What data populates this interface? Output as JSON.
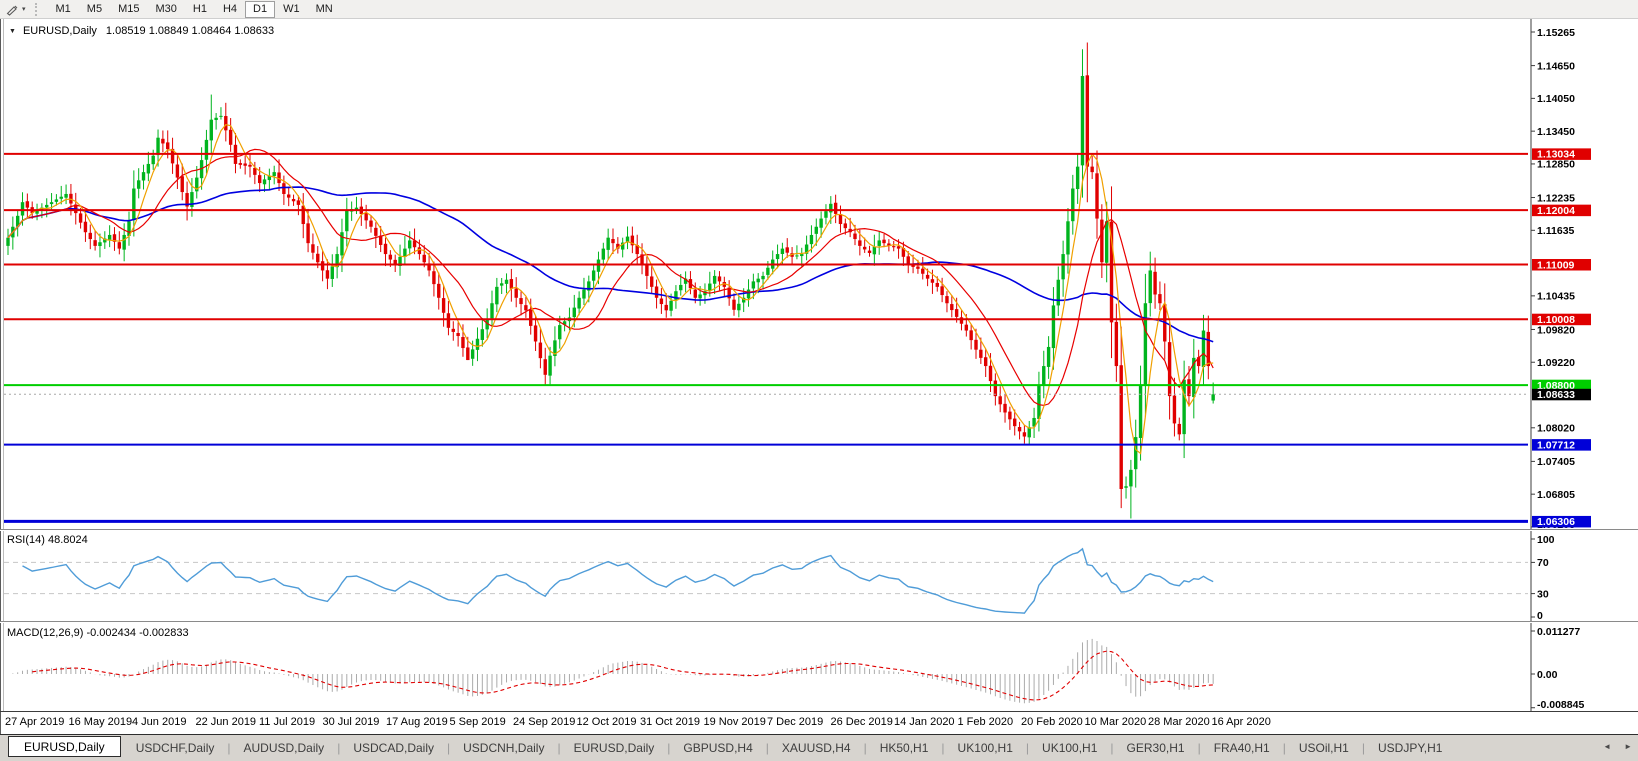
{
  "icons": {
    "title_caret": "▼",
    "tool_caret": "▾",
    "tab_scroll_left": "◄",
    "tab_scroll_right": "►",
    "pencil_tool": "pencil"
  },
  "toolbar": {
    "timeframes": [
      "M1",
      "M5",
      "M15",
      "M30",
      "H1",
      "H4",
      "D1",
      "W1",
      "MN"
    ],
    "active_timeframe": "D1"
  },
  "chart": {
    "title": {
      "symbol": "EURUSD,Daily",
      "ohlc": "1.08519 1.08849 1.08464 1.08633"
    }
  },
  "rsi_panel": {
    "label": "RSI(14) 48.8024",
    "axis_labels": [
      {
        "text": "100",
        "value": 100
      },
      {
        "text": "70",
        "value": 70
      },
      {
        "text": "30",
        "value": 30
      },
      {
        "text": "0",
        "value": 0
      }
    ]
  },
  "macd_panel": {
    "label": "MACD(12,26,9) -0.002434 -0.002833",
    "axis_labels": [
      {
        "text": "0.011277",
        "value": 0.011277
      },
      {
        "text": "0.00",
        "value": 0
      },
      {
        "text": "-0.008845",
        "value": -0.008845
      }
    ]
  },
  "date_axis": [
    "27 Apr 2019",
    "16 May 2019",
    "4 Jun 2019",
    "22 Jun 2019",
    "11 Jul 2019",
    "30 Jul 2019",
    "17 Aug 2019",
    "5 Sep 2019",
    "24 Sep 2019",
    "12 Oct 2019",
    "31 Oct 2019",
    "19 Nov 2019",
    "7 Dec 2019",
    "26 Dec 2019",
    "14 Jan 2020",
    "1 Feb 2020",
    "20 Feb 2020",
    "10 Mar 2020",
    "28 Mar 2020",
    "16 Apr 2020"
  ],
  "tabs": [
    {
      "label": "EURUSD,Daily",
      "active": true
    },
    {
      "label": "USDCHF,Daily",
      "active": false
    },
    {
      "label": "AUDUSD,Daily",
      "active": false
    },
    {
      "label": "USDCAD,Daily",
      "active": false
    },
    {
      "label": "USDCNH,Daily",
      "active": false
    },
    {
      "label": "EURUSD,Daily",
      "active": false
    },
    {
      "label": "GBPUSD,H4",
      "active": false
    },
    {
      "label": "XAUUSD,H4",
      "active": false
    },
    {
      "label": "HK50,H1",
      "active": false
    },
    {
      "label": "UK100,H1",
      "active": false
    },
    {
      "label": "UK100,H1",
      "active": false
    },
    {
      "label": "GER30,H1",
      "active": false
    },
    {
      "label": "FRA40,H1",
      "active": false
    },
    {
      "label": "USOil,H1",
      "active": false
    },
    {
      "label": "USDJPY,H1",
      "active": false
    }
  ],
  "chart_data": {
    "type": "candlestick",
    "symbol": "EURUSD",
    "timeframe": "Daily",
    "last_candle": {
      "open": 1.08519,
      "high": 1.08849,
      "low": 1.08464,
      "close": 1.08633
    },
    "price_axis_ticks": [
      1.15265,
      1.1465,
      1.1405,
      1.1345,
      1.1285,
      1.12235,
      1.11635,
      1.10435,
      1.0982,
      1.0922,
      1.0802,
      1.07405,
      1.06805,
      1.06205
    ],
    "horizontal_levels": [
      {
        "price": 1.13034,
        "color": "#e00000",
        "width": 2
      },
      {
        "price": 1.12004,
        "color": "#e00000",
        "width": 2
      },
      {
        "price": 1.11009,
        "color": "#e00000",
        "width": 2
      },
      {
        "price": 1.10008,
        "color": "#e00000",
        "width": 2
      },
      {
        "price": 1.088,
        "color": "#00ce00",
        "width": 2
      },
      {
        "price": 1.07712,
        "color": "#0000d8",
        "width": 2
      },
      {
        "price": 1.06306,
        "color": "#0000d8",
        "width": 3
      }
    ],
    "current_price": {
      "price": 1.08633,
      "badge_color": "#000000",
      "line_color": "#a8a8a8"
    },
    "colors": {
      "up": "#00b41e",
      "down": "#e00000",
      "ma_fast": "#f0a000",
      "ma_mid": "#e80000",
      "ma_slow": "#0000e0",
      "rsi": "#4f9cd8",
      "macd_hist": "#ababab",
      "macd_signal": "#e00000"
    },
    "moving_averages": [
      {
        "name": "fast",
        "period": 5
      },
      {
        "name": "mid",
        "period": 13
      },
      {
        "name": "slow",
        "period": 55
      }
    ],
    "candle_count": 250,
    "close_path_anchors": [
      [
        0,
        1.115
      ],
      [
        2,
        1.119
      ],
      [
        3,
        1.1215
      ],
      [
        5,
        1.1195
      ],
      [
        7,
        1.1205
      ],
      [
        10,
        1.122
      ],
      [
        12,
        1.123
      ],
      [
        14,
        1.1195
      ],
      [
        16,
        1.116
      ],
      [
        18,
        1.1135
      ],
      [
        21,
        1.1155
      ],
      [
        23,
        1.113
      ],
      [
        25,
        1.118
      ],
      [
        26,
        1.124
      ],
      [
        28,
        1.127
      ],
      [
        30,
        1.13
      ],
      [
        31,
        1.1333
      ],
      [
        33,
        1.1312
      ],
      [
        35,
        1.126
      ],
      [
        37,
        1.1207
      ],
      [
        39,
        1.126
      ],
      [
        40,
        1.1292
      ],
      [
        42,
        1.1366
      ],
      [
        44,
        1.1373
      ],
      [
        46,
        1.132
      ],
      [
        47,
        1.1285
      ],
      [
        50,
        1.128
      ],
      [
        52,
        1.125
      ],
      [
        55,
        1.127
      ],
      [
        57,
        1.123
      ],
      [
        60,
        1.121
      ],
      [
        62,
        1.114
      ],
      [
        64,
        1.1105
      ],
      [
        66,
        1.1075
      ],
      [
        68,
        1.112
      ],
      [
        70,
        1.12
      ],
      [
        72,
        1.1205
      ],
      [
        75,
        1.117
      ],
      [
        78,
        1.112
      ],
      [
        80,
        1.11
      ],
      [
        83,
        1.1145
      ],
      [
        85,
        1.112
      ],
      [
        87,
        1.109
      ],
      [
        89,
        1.104
      ],
      [
        91,
        1.0985
      ],
      [
        93,
        1.097
      ],
      [
        95,
        1.0926
      ],
      [
        97,
        1.0965
      ],
      [
        99,
        1.1
      ],
      [
        101,
        1.106
      ],
      [
        103,
        1.1073
      ],
      [
        105,
        1.104
      ],
      [
        107,
        1.1017
      ],
      [
        109,
        1.096
      ],
      [
        111,
        1.0899
      ],
      [
        112,
        1.0934
      ],
      [
        114,
        1.099
      ],
      [
        116,
        1.1004
      ],
      [
        118,
        1.104
      ],
      [
        120,
        1.107
      ],
      [
        122,
        1.111
      ],
      [
        124,
        1.115
      ],
      [
        126,
        1.113
      ],
      [
        128,
        1.1152
      ],
      [
        130,
        1.112
      ],
      [
        132,
        1.108
      ],
      [
        134,
        1.104
      ],
      [
        136,
        1.1017
      ],
      [
        138,
        1.1052
      ],
      [
        140,
        1.1075
      ],
      [
        142,
        1.104
      ],
      [
        144,
        1.1052
      ],
      [
        146,
        1.108
      ],
      [
        148,
        1.106
      ],
      [
        150,
        1.1018
      ],
      [
        152,
        1.104
      ],
      [
        154,
        1.107
      ],
      [
        156,
        1.108
      ],
      [
        158,
        1.111
      ],
      [
        160,
        1.113
      ],
      [
        162,
        1.1115
      ],
      [
        164,
        1.112
      ],
      [
        166,
        1.1155
      ],
      [
        168,
        1.1185
      ],
      [
        170,
        1.1212
      ],
      [
        172,
        1.1175
      ],
      [
        174,
        1.116
      ],
      [
        176,
        1.1135
      ],
      [
        178,
        1.1122
      ],
      [
        180,
        1.1145
      ],
      [
        182,
        1.1135
      ],
      [
        184,
        1.113
      ],
      [
        186,
        1.11
      ],
      [
        188,
        1.1093
      ],
      [
        190,
        1.1075
      ],
      [
        192,
        1.106
      ],
      [
        194,
        1.103
      ],
      [
        196,
        1.1005
      ],
      [
        198,
        1.098
      ],
      [
        200,
        1.0945
      ],
      [
        202,
        1.0915
      ],
      [
        204,
        1.086
      ],
      [
        206,
        1.083
      ],
      [
        208,
        1.0805
      ],
      [
        210,
        1.0786
      ],
      [
        212,
        1.082
      ],
      [
        213,
        1.088
      ],
      [
        215,
        1.095
      ],
      [
        216,
        1.1026
      ],
      [
        218,
        1.112
      ],
      [
        220,
        1.124
      ],
      [
        221,
        1.128
      ],
      [
        222,
        1.1446
      ],
      [
        223,
        1.128
      ],
      [
        224,
        1.127
      ],
      [
        225,
        1.1185
      ],
      [
        226,
        1.1105
      ],
      [
        227,
        1.118
      ],
      [
        228,
        1.0995
      ],
      [
        229,
        1.0915
      ],
      [
        230,
        1.069
      ],
      [
        231,
        1.0695
      ],
      [
        232,
        1.0725
      ],
      [
        233,
        1.0785
      ],
      [
        234,
        1.088
      ],
      [
        235,
        1.103
      ],
      [
        236,
        1.109
      ],
      [
        237,
        1.1046
      ],
      [
        238,
        1.103
      ],
      [
        239,
        1.096
      ],
      [
        240,
        1.086
      ],
      [
        241,
        1.081
      ],
      [
        242,
        1.079
      ],
      [
        243,
        1.089
      ],
      [
        244,
        1.086
      ],
      [
        245,
        1.093
      ],
      [
        246,
        1.0915
      ],
      [
        247,
        1.098
      ],
      [
        248,
        1.0915
      ],
      [
        249,
        1.08633
      ]
    ],
    "wick_overrides": {
      "31": {
        "high": 1.1348
      },
      "42": {
        "high": 1.1412
      },
      "95": {
        "low": 1.0926
      },
      "111": {
        "low": 1.0879
      },
      "222": {
        "high": 1.1495
      },
      "230": {
        "low": 1.0655
      },
      "232": {
        "low": 1.0636
      }
    },
    "rsi": {
      "period": 14,
      "current": 48.8024,
      "overbought": 70,
      "oversold": 30,
      "range": [
        0,
        100
      ]
    },
    "macd": {
      "fast": 12,
      "slow": 26,
      "signal": 9,
      "current_main": -0.002434,
      "current_signal": -0.002833,
      "axis_max": 0.011277,
      "axis_min": -0.008845
    }
  }
}
